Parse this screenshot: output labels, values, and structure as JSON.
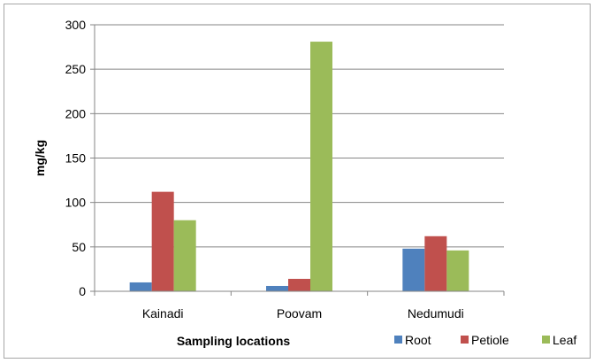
{
  "chart_data": {
    "type": "bar",
    "categories": [
      "Kainadi",
      "Poovam",
      "Nedumudi"
    ],
    "series": [
      {
        "name": "Root",
        "values": [
          10,
          6,
          48
        ],
        "color": "#4f81bd"
      },
      {
        "name": "Petiole",
        "values": [
          112,
          14,
          62
        ],
        "color": "#c0504d"
      },
      {
        "name": "Leaf",
        "values": [
          80,
          281,
          46
        ],
        "color": "#9bbb59"
      }
    ],
    "title": "",
    "xlabel": "Sampling locations",
    "ylabel": "mg/kg",
    "ylim": [
      0,
      300
    ],
    "yticks": [
      0,
      50,
      100,
      150,
      200,
      250,
      300
    ],
    "grid": true,
    "legend_position": "bottom-right"
  }
}
